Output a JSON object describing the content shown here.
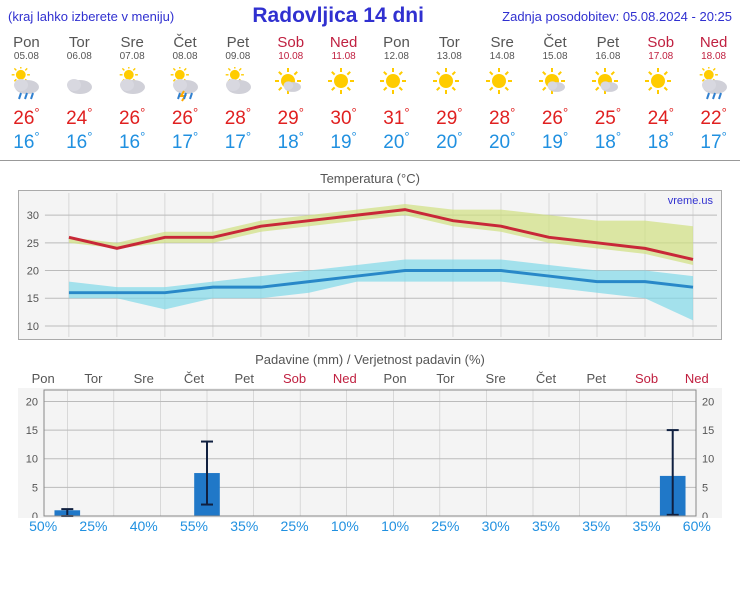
{
  "header": {
    "left": "(kraj lahko izberete v meniju)",
    "title": "Radovljica 14 dni",
    "right": "Zadnja posodobitev: 05.08.2024 - 20:25"
  },
  "days": [
    {
      "name": "Pon",
      "date": "05.08",
      "weekend": false,
      "icon": "sun-rain",
      "high": 26,
      "low": 16
    },
    {
      "name": "Tor",
      "date": "06.08",
      "weekend": false,
      "icon": "cloudy",
      "high": 24,
      "low": 16
    },
    {
      "name": "Sre",
      "date": "07.08",
      "weekend": false,
      "icon": "partly",
      "high": 26,
      "low": 16
    },
    {
      "name": "Čet",
      "date": "08.08",
      "weekend": false,
      "icon": "storm",
      "high": 26,
      "low": 17
    },
    {
      "name": "Pet",
      "date": "09.08",
      "weekend": false,
      "icon": "partly",
      "high": 28,
      "low": 17
    },
    {
      "name": "Sob",
      "date": "10.08",
      "weekend": true,
      "icon": "mostly-sun",
      "high": 29,
      "low": 18
    },
    {
      "name": "Ned",
      "date": "11.08",
      "weekend": true,
      "icon": "sun",
      "high": 30,
      "low": 19
    },
    {
      "name": "Pon",
      "date": "12.08",
      "weekend": false,
      "icon": "sun",
      "high": 31,
      "low": 20
    },
    {
      "name": "Tor",
      "date": "13.08",
      "weekend": false,
      "icon": "sun",
      "high": 29,
      "low": 20
    },
    {
      "name": "Sre",
      "date": "14.08",
      "weekend": false,
      "icon": "sun",
      "high": 28,
      "low": 20
    },
    {
      "name": "Čet",
      "date": "15.08",
      "weekend": false,
      "icon": "mostly-sun",
      "high": 26,
      "low": 19
    },
    {
      "name": "Pet",
      "date": "16.08",
      "weekend": false,
      "icon": "mostly-sun",
      "high": 25,
      "low": 18
    },
    {
      "name": "Sob",
      "date": "17.08",
      "weekend": true,
      "icon": "sun",
      "high": 24,
      "low": 18
    },
    {
      "name": "Ned",
      "date": "18.08",
      "weekend": true,
      "icon": "sun-rain",
      "high": 22,
      "low": 17
    }
  ],
  "tempChart": {
    "title": "Temperatura (°C)",
    "watermark": "vreme.us",
    "ylim": [
      8,
      34
    ],
    "yticks": [
      10,
      15,
      20,
      25,
      30
    ],
    "background": "#f4f4f4",
    "grid_color": "#bbbbbb",
    "high_line_color": "#c82838",
    "high_band_color": "#d0e080",
    "high_band_opacity": 0.7,
    "low_line_color": "#2888c8",
    "low_band_color": "#80d8e8",
    "low_band_opacity": 0.7,
    "line_width": 3,
    "high": [
      26,
      24,
      26,
      26,
      28,
      29,
      30,
      31,
      29,
      28,
      26,
      25,
      24,
      22
    ],
    "high_upper": [
      26,
      25,
      27,
      27,
      29,
      30,
      31,
      32,
      31,
      31,
      30,
      29,
      29,
      28
    ],
    "high_lower": [
      25,
      24,
      25,
      25,
      27,
      28,
      29,
      30,
      28,
      27,
      25,
      24,
      23,
      21
    ],
    "low": [
      16,
      16,
      16,
      17,
      17,
      18,
      19,
      20,
      20,
      20,
      19,
      18,
      18,
      17
    ],
    "low_upper": [
      18,
      17,
      17,
      18,
      19,
      20,
      21,
      22,
      22,
      22,
      21,
      20,
      20,
      19
    ],
    "low_lower": [
      15,
      15,
      13,
      15,
      15,
      16,
      18,
      18,
      18,
      18,
      17,
      16,
      15,
      11
    ]
  },
  "precipChart": {
    "title": "Padavine (mm) / Verjetnost padavin (%)",
    "ylim": [
      0,
      22
    ],
    "yticks": [
      0,
      5,
      10,
      15,
      20
    ],
    "bar_color": "#2078c8",
    "whisker_color": "#102040",
    "background": "#f4f4f4",
    "grid_color": "#bbbbbb",
    "bars": [
      {
        "value": 1.0,
        "upper": 1.2,
        "lower": 0.0
      },
      {
        "value": 0.0,
        "upper": 0.0,
        "lower": 0.0
      },
      {
        "value": 0.0,
        "upper": 0.0,
        "lower": 0.0
      },
      {
        "value": 7.5,
        "upper": 13.0,
        "lower": 2.0
      },
      {
        "value": 0.0,
        "upper": 0.0,
        "lower": 0.0
      },
      {
        "value": 0.0,
        "upper": 0.0,
        "lower": 0.0
      },
      {
        "value": 0.0,
        "upper": 0.0,
        "lower": 0.0
      },
      {
        "value": 0.0,
        "upper": 0.0,
        "lower": 0.0
      },
      {
        "value": 0.0,
        "upper": 0.0,
        "lower": 0.0
      },
      {
        "value": 0.0,
        "upper": 0.0,
        "lower": 0.0
      },
      {
        "value": 0.0,
        "upper": 0.0,
        "lower": 0.0
      },
      {
        "value": 0.0,
        "upper": 0.0,
        "lower": 0.0
      },
      {
        "value": 0.0,
        "upper": 0.0,
        "lower": 0.0
      },
      {
        "value": 7.0,
        "upper": 15.0,
        "lower": 0.2
      }
    ],
    "prob": [
      50,
      25,
      40,
      55,
      35,
      25,
      10,
      10,
      25,
      30,
      35,
      35,
      35,
      60
    ]
  }
}
